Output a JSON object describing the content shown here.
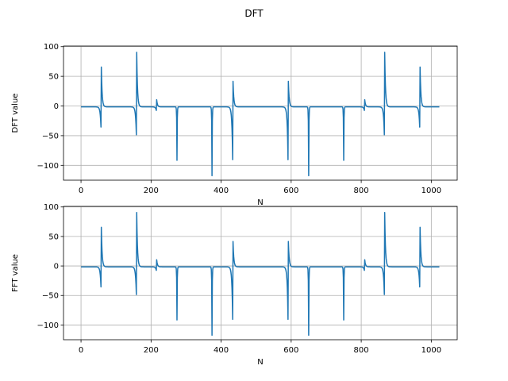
{
  "figure": {
    "title": "DFT"
  },
  "colors": {
    "series": "#1f77b4",
    "grid": "#b0b0b0"
  },
  "chart_data": [
    {
      "type": "line",
      "xlabel": "N",
      "ylabel": "DFT value",
      "xlim": [
        -50,
        1074
      ],
      "ylim": [
        -125,
        101
      ],
      "xticks": [
        0,
        200,
        400,
        600,
        800,
        1000
      ],
      "yticks": [
        100,
        50,
        0,
        -50,
        -100
      ],
      "grid": true,
      "n_points": 1024,
      "peaks": [
        {
          "x": 57,
          "low": -34,
          "high": 67
        },
        {
          "x": 158,
          "low": -47,
          "high": 92
        },
        {
          "x": 215,
          "low": -6,
          "high": 12
        },
        {
          "x": 274,
          "low": -90,
          "high": 0
        },
        {
          "x": 374,
          "low": -116,
          "high": 0
        },
        {
          "x": 433,
          "low": -89,
          "high": 43
        },
        {
          "x": 591,
          "low": -89,
          "high": 43
        },
        {
          "x": 650,
          "low": -116,
          "high": 0
        },
        {
          "x": 750,
          "low": -90,
          "high": 0
        },
        {
          "x": 809,
          "low": -6,
          "high": 12
        },
        {
          "x": 866,
          "low": -47,
          "high": 92
        },
        {
          "x": 967,
          "low": -34,
          "high": 67
        }
      ]
    },
    {
      "type": "line",
      "xlabel": "N",
      "ylabel": "FFT value",
      "xlim": [
        -50,
        1074
      ],
      "ylim": [
        -125,
        101
      ],
      "xticks": [
        0,
        200,
        400,
        600,
        800,
        1000
      ],
      "yticks": [
        100,
        50,
        0,
        -50,
        -100
      ],
      "grid": true,
      "n_points": 1024,
      "peaks": [
        {
          "x": 57,
          "low": -34,
          "high": 67
        },
        {
          "x": 158,
          "low": -47,
          "high": 92
        },
        {
          "x": 215,
          "low": -6,
          "high": 12
        },
        {
          "x": 274,
          "low": -90,
          "high": 0
        },
        {
          "x": 374,
          "low": -116,
          "high": 0
        },
        {
          "x": 433,
          "low": -89,
          "high": 43
        },
        {
          "x": 591,
          "low": -89,
          "high": 43
        },
        {
          "x": 650,
          "low": -116,
          "high": 0
        },
        {
          "x": 750,
          "low": -90,
          "high": 0
        },
        {
          "x": 809,
          "low": -6,
          "high": 12
        },
        {
          "x": 866,
          "low": -47,
          "high": 92
        },
        {
          "x": 967,
          "low": -34,
          "high": 67
        }
      ]
    }
  ]
}
